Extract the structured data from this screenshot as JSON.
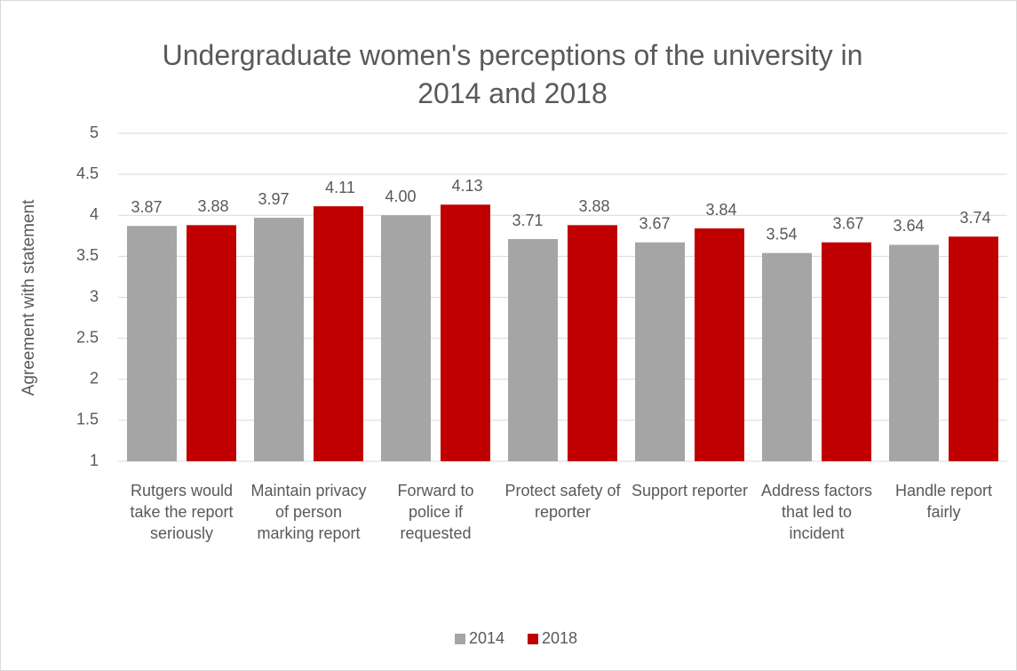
{
  "chart_data": {
    "type": "bar",
    "title": "Undergraduate women's perceptions of the university in 2014 and 2018",
    "y_label": "Agreement with statement",
    "categories": [
      "Rutgers would take the report seriously",
      "Maintain privacy of person marking report",
      "Forward to police if requested",
      "Protect safety of reporter",
      "Support reporter",
      "Address factors that led to incident",
      "Handle report fairly"
    ],
    "series": [
      {
        "name": "2014",
        "color": "#a5a5a5",
        "values": [
          3.87,
          3.97,
          4.0,
          3.71,
          3.67,
          3.54,
          3.64
        ],
        "value_labels": [
          "3.87",
          "3.97",
          "4.00",
          "3.71",
          "3.67",
          "3.54",
          "3.64"
        ]
      },
      {
        "name": "2018",
        "color": "#c00000",
        "values": [
          3.88,
          4.11,
          4.13,
          3.88,
          3.84,
          3.67,
          3.74
        ],
        "value_labels": [
          "3.88",
          "4.11",
          "4.13",
          "3.88",
          "3.84",
          "3.67",
          "3.74"
        ]
      }
    ],
    "ylim": [
      1,
      5
    ],
    "yticks": [
      1,
      1.5,
      2,
      2.5,
      3,
      3.5,
      4,
      4.5,
      5
    ],
    "grid": true,
    "legend": "bottom"
  }
}
